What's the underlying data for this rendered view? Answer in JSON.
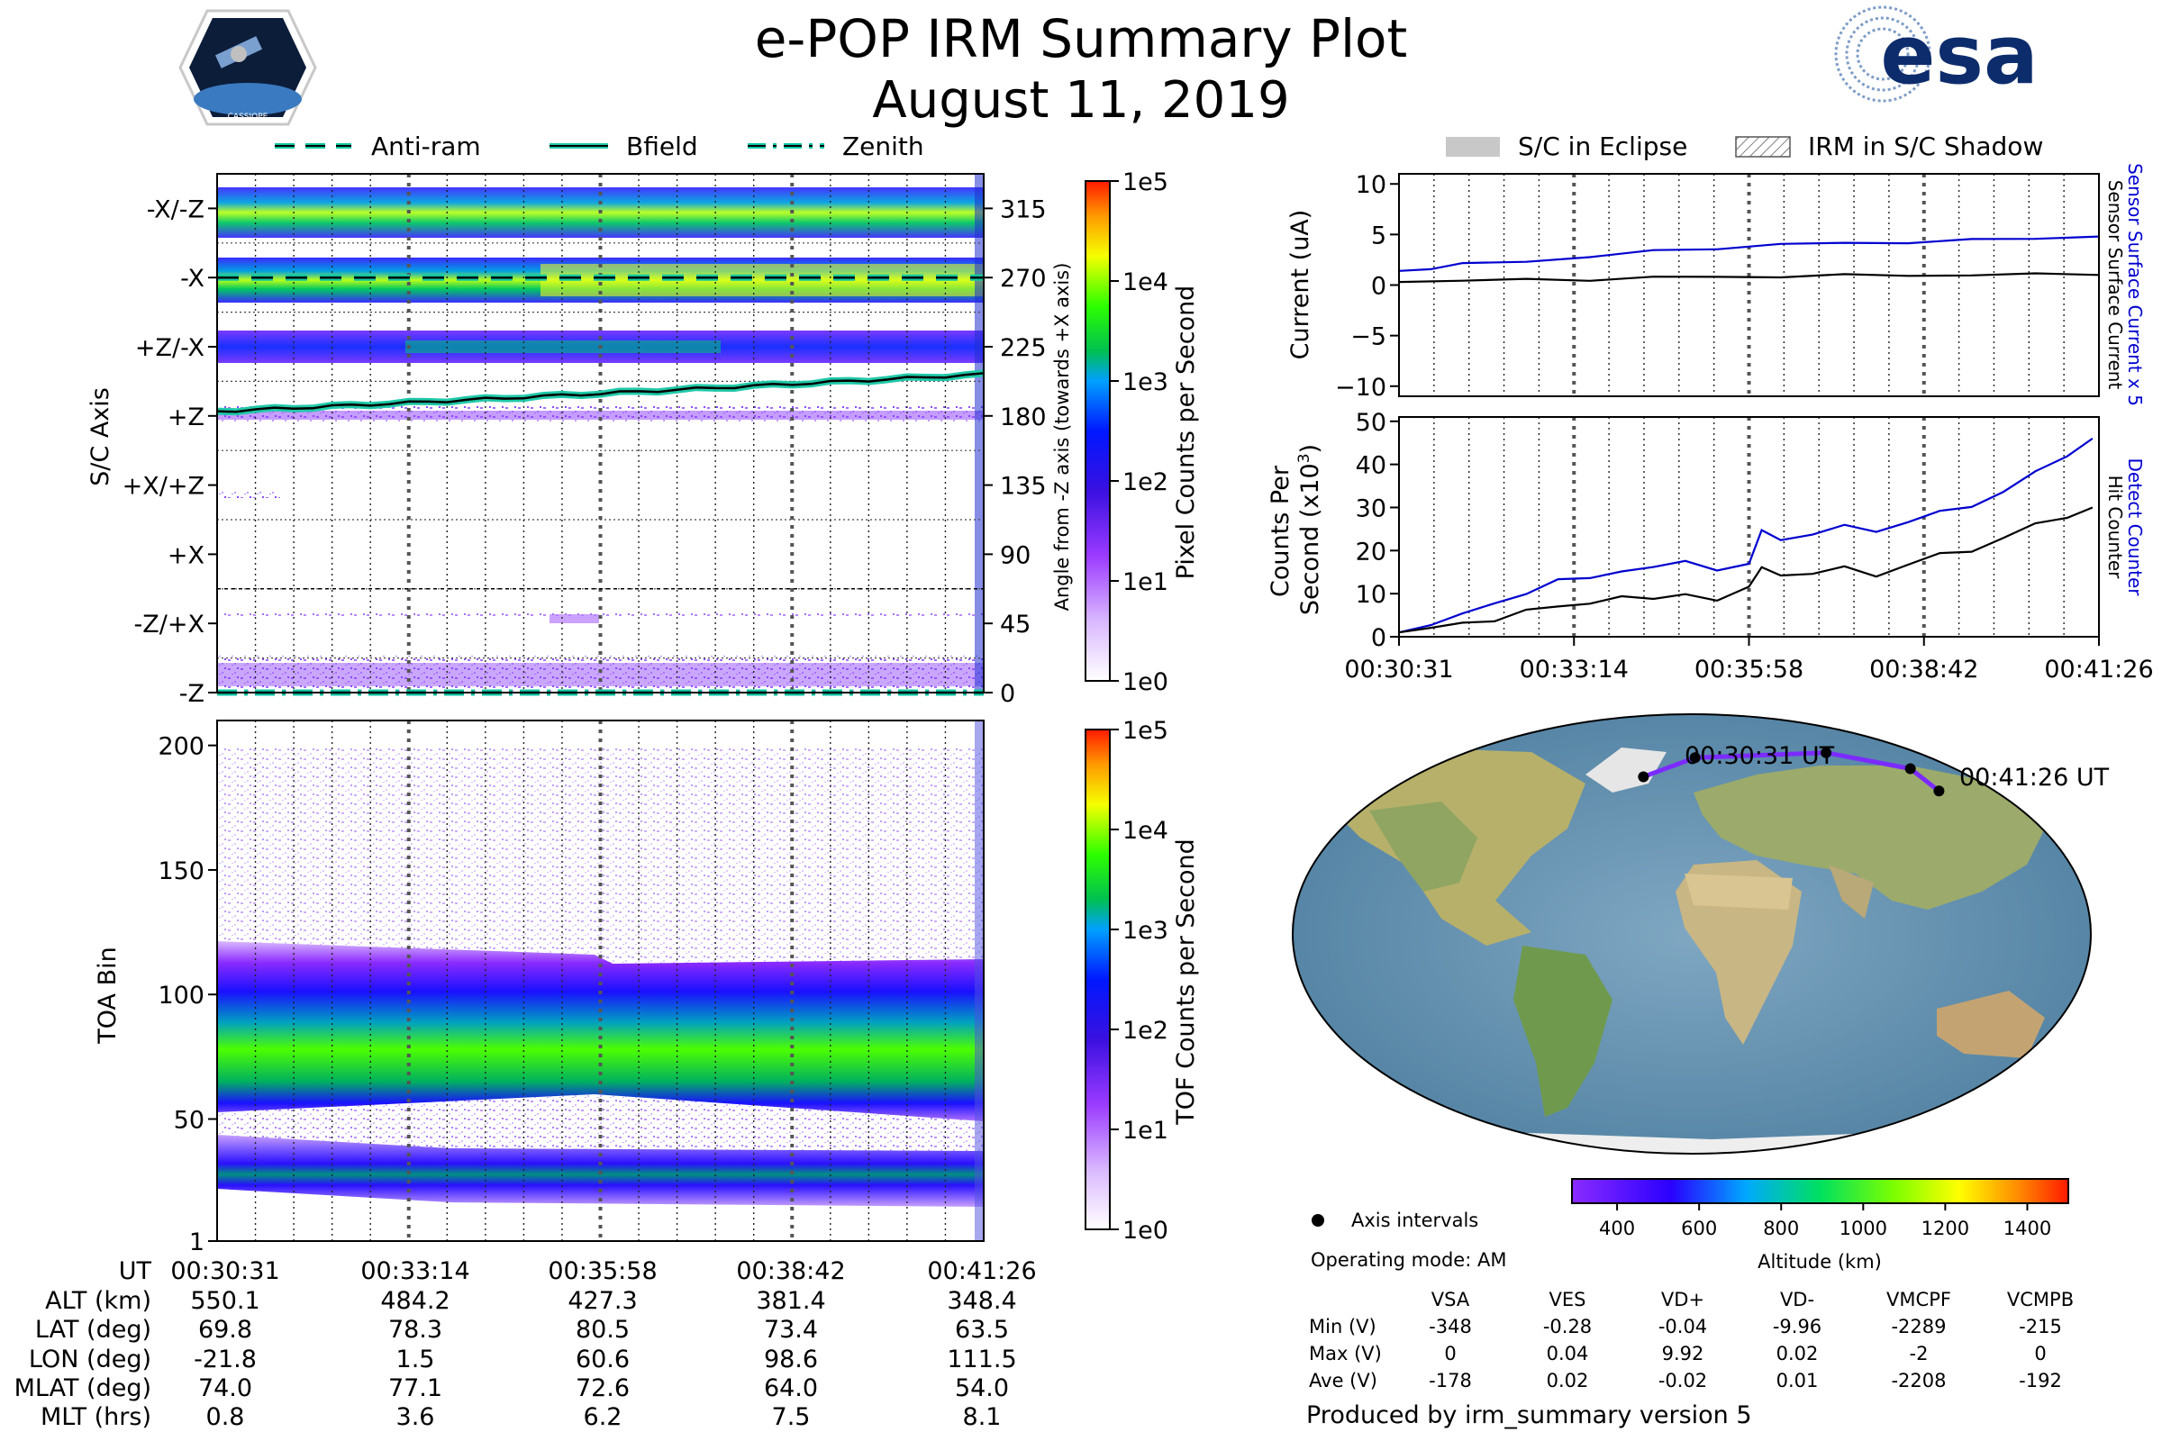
{
  "header": {
    "title": "e-POP IRM Summary Plot",
    "date": "August 11, 2019",
    "mission_logo_text": "CASSIOPE",
    "agency_logo_text": "esa"
  },
  "legend_left": {
    "items": [
      "Anti-ram",
      "Bfield",
      "Zenith"
    ]
  },
  "legend_right": {
    "items": [
      "S/C in Eclipse",
      "IRM in S/C Shadow"
    ]
  },
  "colors": {
    "bfield": "#20c9a8",
    "zenith": "#10c8a8",
    "blue_trace": "#0000d0",
    "black_trace": "#000000",
    "orbit": "#7b2bff"
  },
  "chart_data": [
    {
      "id": "sc-axis",
      "type": "heatmap",
      "ylabel": "S/C Axis",
      "ylabel_right": "Angle from -Z axis (towards +X axis)",
      "ytick_labels": [
        "-X/-Z",
        "-X",
        "+Z/-X",
        "+Z",
        "+X/+Z",
        "+X",
        "-Z/+X",
        "-Z"
      ],
      "ytick_labels_right": [
        "315",
        "270",
        "225",
        "180",
        "135",
        "90",
        "45",
        "0"
      ],
      "ylim_right": [
        0,
        337.5
      ],
      "bfield_angle": {
        "start": 183,
        "end": 207
      },
      "antiram_angle": 270,
      "zenith_angle": 0,
      "colorbar": {
        "label": "Pixel Counts per Second",
        "ticks": [
          "1e0",
          "1e1",
          "1e2",
          "1e3",
          "1e4",
          "1e5"
        ]
      }
    },
    {
      "id": "toa",
      "type": "heatmap",
      "ylabel": "TOA Bin",
      "ylim": [
        1,
        210
      ],
      "yticks": [
        "1",
        "50",
        "100",
        "150",
        "200"
      ],
      "bands": [
        {
          "name": "main",
          "start_center": 78,
          "end_center": 70
        },
        {
          "name": "lower",
          "start_center": 35,
          "end_center": 25
        }
      ],
      "colorbar": {
        "label": "TOF Counts per Second",
        "ticks": [
          "1e0",
          "1e1",
          "1e2",
          "1e3",
          "1e4",
          "1e5"
        ]
      }
    },
    {
      "id": "current",
      "type": "line",
      "ylabel": "Current (uA)",
      "ylim": [
        -11,
        11
      ],
      "yticks": [
        "10",
        "5",
        "0",
        "−5",
        "−10"
      ],
      "series": [
        {
          "name": "Sensor Surface Current x 5",
          "color": "#0000d0",
          "x": [
            0,
            0.5,
            1,
            2,
            3,
            4,
            5,
            6,
            7,
            8,
            9,
            10,
            11
          ],
          "values": [
            1.4,
            1.7,
            2.0,
            2.4,
            2.8,
            3.3,
            3.7,
            4.0,
            4.1,
            4.3,
            4.4,
            4.6,
            4.8
          ]
        },
        {
          "name": "Sensor Surface Current",
          "color": "#000000",
          "x": [
            0,
            1,
            2,
            3,
            4,
            5,
            6,
            7,
            8,
            9,
            10,
            11
          ],
          "values": [
            0.3,
            0.4,
            0.5,
            0.6,
            0.7,
            0.8,
            0.9,
            0.9,
            1.0,
            1.0,
            1.0,
            1.0
          ]
        }
      ],
      "ylabel_right": [
        "Sensor Surface Current x 5",
        "Sensor Surface Current"
      ]
    },
    {
      "id": "counts",
      "type": "line",
      "ylabel": "Counts Per Second (x10^3)",
      "ylabel_lines": [
        "Counts Per",
        "Second (x10",
        "3",
        ")"
      ],
      "ylim": [
        0,
        51
      ],
      "yticks": [
        "50",
        "40",
        "30",
        "20",
        "10",
        "0"
      ],
      "xtick_labels": [
        "00:30:31",
        "00:33:14",
        "00:35:58",
        "00:38:42",
        "00:41:26"
      ],
      "series": [
        {
          "name": "Detect Counter",
          "color": "#0000d0",
          "x": [
            0,
            0.5,
            1,
            1.5,
            2,
            2.5,
            3,
            3.5,
            4,
            4.5,
            5,
            5.5,
            5.7,
            6,
            6.5,
            7,
            7.5,
            8,
            8.5,
            9,
            9.5,
            10,
            10.5,
            10.9
          ],
          "values": [
            1,
            3,
            5,
            8,
            10,
            13,
            14,
            15,
            16,
            18,
            15,
            17,
            25,
            22,
            24,
            26,
            24,
            27,
            29,
            30,
            34,
            38,
            42,
            46
          ]
        },
        {
          "name": "Hit Counter",
          "color": "#000000",
          "x": [
            0,
            0.5,
            1,
            1.5,
            2,
            2.5,
            3,
            3.5,
            4,
            4.5,
            5,
            5.5,
            5.7,
            6,
            6.5,
            7,
            7.5,
            8,
            8.5,
            9,
            9.5,
            10,
            10.5,
            10.9
          ],
          "values": [
            1,
            2,
            3,
            4,
            6,
            7,
            8,
            9,
            9,
            10,
            8,
            12,
            16,
            14,
            15,
            16,
            14,
            17,
            19,
            20,
            23,
            26,
            28,
            30
          ]
        }
      ],
      "ylabel_right": [
        "Detect Counter",
        "Hit Counter"
      ]
    },
    {
      "id": "orbit-map",
      "type": "line",
      "start_label": "00:30:31 UT",
      "end_label": "00:41:26 UT",
      "colorbar": {
        "label": "Altitude (km)",
        "ticks": [
          "400",
          "600",
          "800",
          "1000",
          "1200",
          "1400"
        ]
      },
      "orbit_points": [
        {
          "lon": -21.8,
          "lat": 69.8
        },
        {
          "lon": 1.5,
          "lat": 78.3
        },
        {
          "lon": 60.6,
          "lat": 80.5
        },
        {
          "lon": 98.6,
          "lat": 73.4
        },
        {
          "lon": 111.5,
          "lat": 63.5
        }
      ]
    }
  ],
  "ephemeris": {
    "row_labels": [
      "UT",
      "ALT (km)",
      "LAT (deg)",
      "LON (deg)",
      "MLAT (deg)",
      "MLT (hrs)"
    ],
    "columns": [
      [
        "00:30:31",
        "550.1",
        "69.8",
        "-21.8",
        "74.0",
        "0.8"
      ],
      [
        "00:33:14",
        "484.2",
        "78.3",
        "1.5",
        "77.1",
        "3.6"
      ],
      [
        "00:35:58",
        "427.3",
        "80.5",
        "60.6",
        "72.6",
        "6.2"
      ],
      [
        "00:38:42",
        "381.4",
        "73.4",
        "98.6",
        "64.0",
        "7.5"
      ],
      [
        "00:41:26",
        "348.4",
        "63.5",
        "111.5",
        "54.0",
        "8.1"
      ]
    ]
  },
  "info": {
    "axis_intervals": "Axis intervals",
    "operating_mode": "Operating mode: AM",
    "voltage_headers": [
      "VSA",
      "VES",
      "VD+",
      "VD-",
      "VMCPF",
      "VCMPB"
    ],
    "voltage_rows": [
      {
        "label": "Min (V)",
        "values": [
          "-348",
          "-0.28",
          "-0.04",
          "-9.96",
          "-2289",
          "-215"
        ]
      },
      {
        "label": "Max (V)",
        "values": [
          "0",
          "0.04",
          "9.92",
          "0.02",
          "-2",
          "0"
        ]
      },
      {
        "label": "Ave (V)",
        "values": [
          "-178",
          "0.02",
          "-0.02",
          "0.01",
          "-2208",
          "-192"
        ]
      }
    ],
    "produced_by": "Produced by irm_summary version 5"
  }
}
